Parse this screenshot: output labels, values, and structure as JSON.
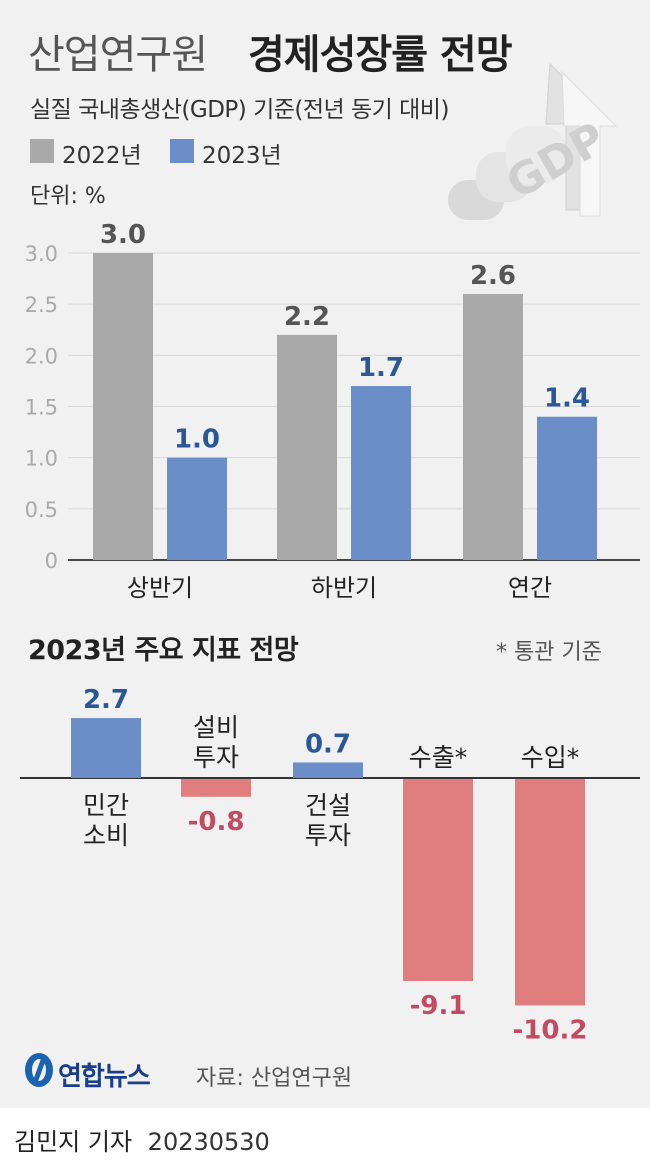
{
  "header": {
    "title_light": "산업연구원",
    "title_bold": "경제성장률 전망",
    "subtitle": "실질 국내총생산(GDP) 기준(전년 동기 대비)",
    "unit": "단위: %"
  },
  "colors": {
    "gray": "#a9a9a9",
    "blue": "#6b8dc8",
    "red": "#e07d7f",
    "blue_text": "#2a5798",
    "red_text": "#c24b63"
  },
  "decoration_icon": "gdp-arrow-icon",
  "decoration_text": "GDP",
  "chart_data": [
    {
      "type": "bar",
      "title": "산업연구원 경제성장률 전망",
      "subtitle": "실질 국내총생산(GDP) 기준(전년 동기 대비)",
      "unit": "단위: %",
      "categories": [
        "상반기",
        "하반기",
        "연간"
      ],
      "series": [
        {
          "name": "2022년",
          "values": [
            3.0,
            2.2,
            2.6
          ]
        },
        {
          "name": "2023년",
          "values": [
            1.0,
            1.7,
            1.4
          ]
        }
      ],
      "value_labels": [
        [
          "3.0",
          "2.2",
          "2.6"
        ],
        [
          "1.0",
          "1.7",
          "1.4"
        ]
      ],
      "yticks": [
        "0",
        "0.5",
        "1.0",
        "1.5",
        "2.0",
        "2.5",
        "3.0"
      ],
      "ylim": [
        0,
        3.0
      ],
      "grid": false,
      "legend": "top-left"
    },
    {
      "type": "bar",
      "title": "2023년 주요 지표 전망",
      "note": "* 통관 기준",
      "categories": [
        "민간 소비",
        "설비 투자",
        "건설 투자",
        "수출*",
        "수입*"
      ],
      "category_lines": [
        [
          "민간",
          "소비"
        ],
        [
          "설비",
          "투자"
        ],
        [
          "건설",
          "투자"
        ],
        [
          "수출*"
        ],
        [
          "수입*"
        ]
      ],
      "values": [
        2.7,
        -0.8,
        0.7,
        -9.1,
        -10.2
      ],
      "value_labels": [
        "2.7",
        "-0.8",
        "0.7",
        "-9.1",
        "-10.2"
      ],
      "grid": false
    }
  ],
  "footer": {
    "logo_text": "연합뉴스",
    "source": "자료: 산업연구원",
    "reporter": "김민지 기자",
    "date": "20230530"
  }
}
